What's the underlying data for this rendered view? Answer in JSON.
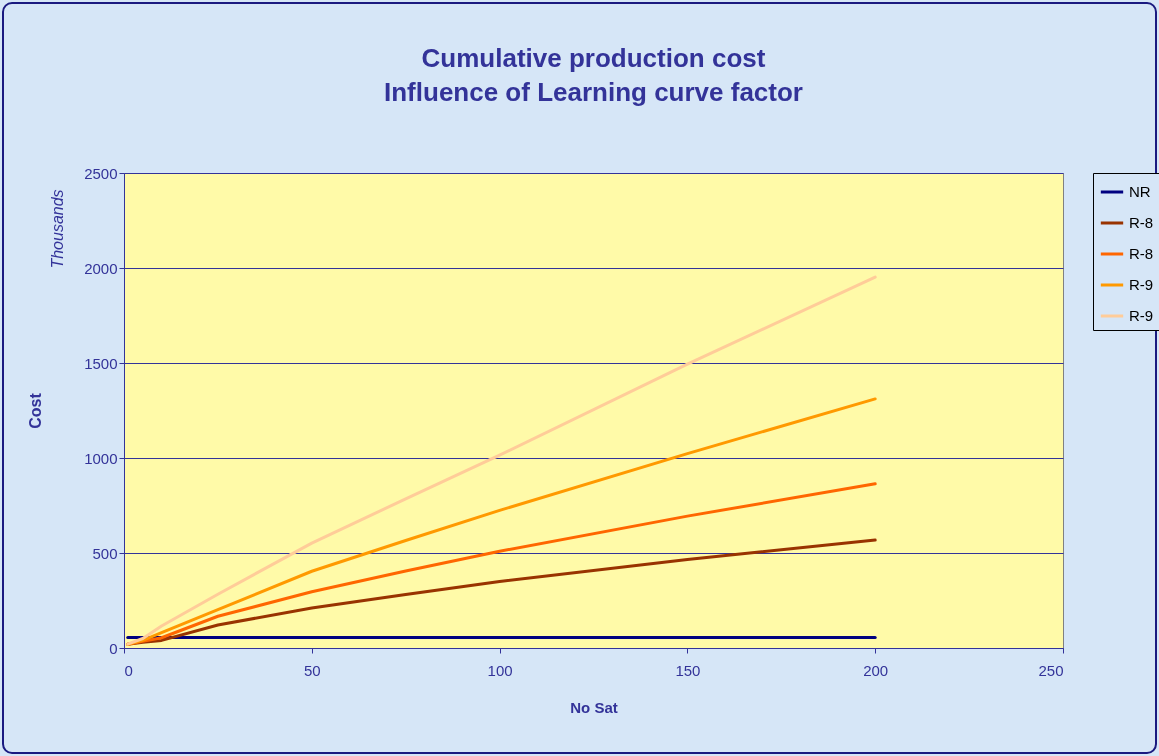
{
  "chart_data": {
    "type": "line",
    "title": "Cumulative production cost",
    "subtitle": "Influence of Learning curve factor",
    "xlabel": "No Sat",
    "ylabel": "Cost",
    "annotations": [
      "Thousands"
    ],
    "x": [
      1,
      5,
      10,
      25,
      50,
      75,
      100,
      150,
      200
    ],
    "series": [
      {
        "name": "NR",
        "color": "#000080",
        "values": [
          55,
          55,
          55,
          55,
          55,
          55,
          55,
          55,
          55
        ]
      },
      {
        "name": "R-8",
        "color": "#993300",
        "values": [
          20,
          30,
          40,
          121,
          210,
          282,
          350,
          466,
          568
        ]
      },
      {
        "name": "R-8",
        "color": "#ff6600",
        "values": [
          20,
          35,
          54,
          167,
          296,
          405,
          509,
          694,
          864
        ]
      },
      {
        "name": "R-9",
        "color": "#ff9900",
        "values": [
          20,
          40,
          81,
          202,
          404,
          566,
          724,
          1023,
          1311
        ]
      },
      {
        "name": "R-9",
        "color": "#ffcc99",
        "values": [
          20,
          50,
          116,
          283,
          552,
          785,
          1015,
          1494,
          1952
        ]
      }
    ],
    "xlim": [
      0,
      250
    ],
    "xticks": [
      0,
      50,
      100,
      150,
      200,
      250
    ],
    "ylim": [
      0,
      2500
    ],
    "yticks": [
      0,
      500,
      1000,
      1500,
      2000,
      2500
    ],
    "grid": "y",
    "legend": "right",
    "line_style": "solid",
    "marker": "none"
  }
}
